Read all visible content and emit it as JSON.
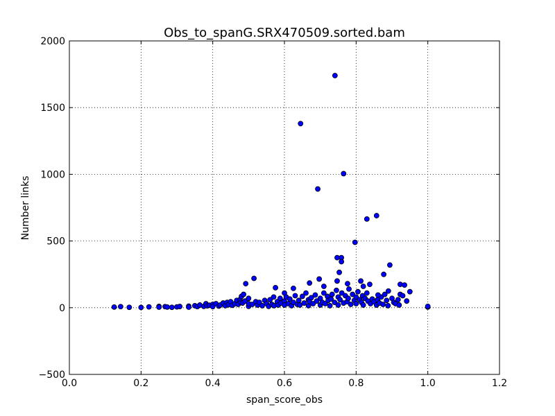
{
  "chart_data": {
    "type": "scatter",
    "title": "Obs_to_spanG.SRX470509.sorted.bam",
    "xlabel": "span_score_obs",
    "ylabel": "Number links",
    "color": "#0000ff",
    "edgecolor": "#000000",
    "grid": true,
    "xlim": [
      0,
      1.2
    ],
    "ylim": [
      -500,
      2000
    ],
    "xticks": [
      {
        "value": 0,
        "label": "0.0"
      },
      0.2,
      0.4,
      0.6,
      0.8,
      {
        "value": 1,
        "label": "1.0"
      },
      1.2
    ],
    "yticks": [
      {
        "value": -500,
        "label": "−500"
      },
      0,
      500,
      1000,
      1500,
      2000
    ],
    "x": [
      0.125,
      0.143,
      0.167,
      0.2,
      0.222,
      0.25,
      0.25,
      0.267,
      0.273,
      0.286,
      0.3,
      0.308,
      0.333,
      0.333,
      0.35,
      0.357,
      0.364,
      0.375,
      0.381,
      0.385,
      0.391,
      0.4,
      0.4,
      0.409,
      0.417,
      0.421,
      0.429,
      0.435,
      0.44,
      0.444,
      0.45,
      0.455,
      0.462,
      0.467,
      0.471,
      0.476,
      0.478,
      0.48,
      0.483,
      0.486,
      0.49,
      0.5,
      0.5,
      0.5,
      0.51,
      0.52,
      0.525,
      0.53,
      0.538,
      0.545,
      0.55,
      0.556,
      0.56,
      0.565,
      0.57,
      0.571,
      0.58,
      0.583,
      0.588,
      0.59,
      0.6,
      0.6,
      0.6,
      0.605,
      0.611,
      0.615,
      0.62,
      0.625,
      0.63,
      0.636,
      0.64,
      0.643,
      0.65,
      0.655,
      0.66,
      0.667,
      0.667,
      0.67,
      0.675,
      0.68,
      0.686,
      0.69,
      0.7,
      0.7,
      0.706,
      0.71,
      0.714,
      0.72,
      0.722,
      0.727,
      0.73,
      0.733,
      0.74,
      0.745,
      0.75,
      0.75,
      0.755,
      0.76,
      0.765,
      0.77,
      0.775,
      0.778,
      0.78,
      0.785,
      0.79,
      0.795,
      0.8,
      0.8,
      0.805,
      0.81,
      0.815,
      0.818,
      0.82,
      0.825,
      0.83,
      0.833,
      0.84,
      0.845,
      0.85,
      0.857,
      0.86,
      0.865,
      0.87,
      0.875,
      0.88,
      0.885,
      0.889,
      0.9,
      0.905,
      0.91,
      0.917,
      0.92,
      0.923,
      0.93,
      0.741,
      0.645,
      0.765,
      0.693,
      0.857,
      0.83,
      0.797,
      0.894,
      0.747,
      0.759,
      0.759,
      0.753,
      0.877,
      0.515,
      0.492,
      0.697,
      0.67,
      0.747,
      0.575,
      0.625,
      0.71,
      0.813,
      0.82,
      0.776,
      0.838,
      0.923,
      0.935,
      0.95,
      0.941,
      0.89,
      0.861,
      1.0,
      1.0
    ],
    "values": [
      5,
      8,
      3,
      2,
      6,
      10,
      4,
      8,
      5,
      3,
      6,
      9,
      12,
      4,
      15,
      8,
      20,
      10,
      30,
      14,
      18,
      25,
      8,
      30,
      12,
      20,
      35,
      15,
      40,
      22,
      45,
      18,
      30,
      55,
      25,
      60,
      40,
      85,
      35,
      100,
      50,
      10,
      70,
      30,
      25,
      45,
      20,
      40,
      15,
      55,
      30,
      10,
      60,
      25,
      80,
      15,
      45,
      20,
      70,
      35,
      110,
      50,
      20,
      80,
      30,
      65,
      15,
      40,
      90,
      25,
      55,
      20,
      85,
      35,
      110,
      60,
      15,
      45,
      75,
      30,
      95,
      50,
      70,
      20,
      40,
      110,
      30,
      85,
      55,
      15,
      65,
      100,
      40,
      130,
      80,
      20,
      60,
      110,
      35,
      90,
      45,
      70,
      140,
      25,
      100,
      55,
      80,
      30,
      120,
      60,
      40,
      90,
      20,
      70,
      110,
      50,
      30,
      65,
      45,
      20,
      60,
      35,
      80,
      25,
      100,
      55,
      15,
      70,
      40,
      30,
      60,
      20,
      100,
      90,
      1740,
      1380,
      1005,
      890,
      690,
      665,
      490,
      320,
      375,
      375,
      345,
      265,
      250,
      220,
      180,
      215,
      185,
      200,
      150,
      145,
      160,
      200,
      160,
      180,
      175,
      175,
      170,
      120,
      50,
      125,
      95,
      5,
      10
    ]
  }
}
